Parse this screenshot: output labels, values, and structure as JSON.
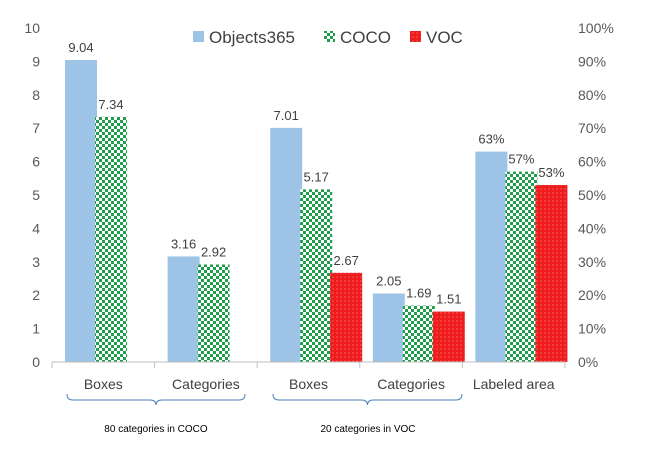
{
  "chart_data": {
    "type": "bar",
    "categories": [
      "Boxes",
      "Categories",
      "Boxes",
      "Categories",
      "Labeled area"
    ],
    "group_labels": [
      "80 categories in COCO",
      "20 categories in VOC"
    ],
    "series": [
      {
        "name": "Objects365",
        "color": "#9dc3e6",
        "pattern": "solid",
        "values": [
          9.04,
          3.16,
          7.01,
          2.05,
          0.63
        ],
        "labels": [
          "9.04",
          "3.16",
          "7.01",
          "2.05",
          "63%"
        ]
      },
      {
        "name": "COCO",
        "color": "#1e9e4a",
        "pattern": "checker",
        "values": [
          7.34,
          2.92,
          5.17,
          1.69,
          0.57
        ],
        "labels": [
          "7.34",
          "2.92",
          "5.17",
          "1.69",
          "57%"
        ]
      },
      {
        "name": "VOC",
        "color": "#ee1c1c",
        "pattern": "solid",
        "values": [
          null,
          null,
          2.67,
          1.51,
          0.53
        ],
        "labels": [
          "",
          "",
          "2.67",
          "1.51",
          "53%"
        ]
      }
    ],
    "axis": "left for Boxes and Categories, right for Labeled area",
    "ylim": [
      0,
      10
    ],
    "y_ticks": [
      "0",
      "1",
      "2",
      "3",
      "4",
      "5",
      "6",
      "7",
      "8",
      "9",
      "10"
    ],
    "y2lim": [
      0,
      1
    ],
    "y2_ticks": [
      "0%",
      "10%",
      "20%",
      "30%",
      "40%",
      "50%",
      "60%",
      "70%",
      "80%",
      "90%",
      "100%"
    ],
    "legend_position": "top",
    "grid": false
  }
}
